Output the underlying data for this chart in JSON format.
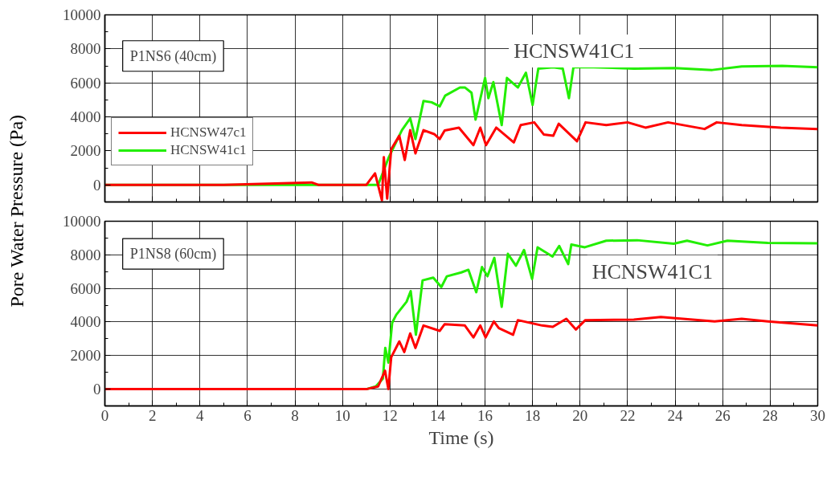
{
  "chart_data": [
    {
      "type": "line",
      "ylabel": "Pore Water Pressure (Pa)",
      "annotations": [
        "P1NS6 (40cm)",
        "HCNSW41C1"
      ],
      "xlim": [
        0,
        30
      ],
      "xticks": [
        0,
        2,
        4,
        6,
        8,
        10,
        12,
        14,
        16,
        18,
        20,
        22,
        24,
        26,
        28,
        30
      ],
      "ylim": [
        -1000,
        10000
      ],
      "yticks": [
        0,
        2000,
        4000,
        6000,
        8000,
        10000
      ],
      "grid": true,
      "legend": "left",
      "tick_labels": "y",
      "line_style": "solid",
      "marker": "none",
      "series": [
        {
          "name": "HCNSW47c1",
          "color": "#ff0000",
          "x": [
            0,
            5,
            8.7,
            9,
            11,
            11.37,
            11.66,
            11.74,
            11.88,
            12.05,
            12.39,
            12.62,
            12.85,
            13.07,
            13.41,
            13.86,
            14.09,
            14.3,
            14.9,
            15.51,
            15.8,
            16.04,
            16.47,
            17.21,
            17.5,
            18.07,
            18.47,
            18.87,
            19.1,
            19.87,
            20.23,
            21.1,
            22.0,
            22.75,
            23.7,
            25.24,
            25.75,
            26.8,
            28.45,
            30
          ],
          "values": [
            0,
            0,
            150,
            0,
            0,
            680,
            -900,
            1630,
            -800,
            2100,
            2890,
            1470,
            3220,
            1860,
            3220,
            2990,
            2700,
            3200,
            3370,
            2340,
            3370,
            2340,
            3370,
            2500,
            3520,
            3680,
            2970,
            2890,
            3600,
            2570,
            3680,
            3520,
            3680,
            3370,
            3680,
            3290,
            3680,
            3520,
            3370,
            3290
          ]
        },
        {
          "name": "HCNSW41c1",
          "color": "#22ee00",
          "x": [
            0,
            5,
            11,
            11.5,
            11.94,
            12.5,
            12.85,
            13.07,
            13.41,
            13.75,
            14.09,
            14.32,
            14.94,
            15.15,
            15.43,
            15.6,
            16.0,
            16.14,
            16.35,
            16.7,
            16.92,
            17.38,
            17.72,
            18.0,
            18.24,
            18.87,
            19.27,
            19.53,
            19.72,
            20.57,
            22.27,
            23.97,
            25.56,
            26.8,
            28.5,
            30
          ],
          "values": [
            0,
            0,
            0,
            0,
            1600,
            3220,
            3920,
            2700,
            4940,
            4860,
            4620,
            5250,
            5730,
            5730,
            5420,
            3840,
            6290,
            5100,
            6050,
            3520,
            6290,
            5730,
            6600,
            4700,
            6840,
            6920,
            6840,
            5100,
            6920,
            6920,
            6840,
            6870,
            6760,
            6970,
            7000,
            6920
          ]
        }
      ]
    },
    {
      "type": "line",
      "xlabel": "Time (s)",
      "annotations": [
        "P1NS8 (60cm)",
        "HCNSW41C1"
      ],
      "xlim": [
        0,
        30
      ],
      "xticks": [
        0,
        2,
        4,
        6,
        8,
        10,
        12,
        14,
        16,
        18,
        20,
        22,
        24,
        26,
        28,
        30
      ],
      "ylim": [
        -1000,
        10000
      ],
      "yticks": [
        0,
        2000,
        4000,
        6000,
        8000,
        10000
      ],
      "grid": true,
      "line_style": "solid",
      "marker": "none",
      "series": [
        {
          "color": "#ff0000",
          "x": [
            0,
            5,
            11,
            11.5,
            11.79,
            11.93,
            12.05,
            12.39,
            12.6,
            12.85,
            13.07,
            13.41,
            14.09,
            14.3,
            15.15,
            15.51,
            15.8,
            16.02,
            16.37,
            16.58,
            17.18,
            17.38,
            18.4,
            18.85,
            19.42,
            19.82,
            20.22,
            22.26,
            23.4,
            25.66,
            26.8,
            27.9,
            30
          ],
          "values": [
            0,
            0,
            0,
            160,
            1100,
            0,
            1900,
            2840,
            2210,
            3320,
            2450,
            3790,
            3470,
            3870,
            3790,
            3080,
            3790,
            3080,
            4030,
            3630,
            3240,
            4110,
            3790,
            3710,
            4190,
            3550,
            4110,
            4140,
            4300,
            4030,
            4190,
            4030,
            3790
          ]
        },
        {
          "color": "#22ee00",
          "x": [
            0,
            5,
            11,
            11.4,
            11.7,
            11.8,
            11.93,
            12.09,
            12.26,
            12.7,
            12.87,
            13.09,
            13.37,
            13.82,
            14.16,
            14.39,
            15.0,
            15.3,
            15.63,
            15.87,
            16.1,
            16.39,
            16.7,
            16.96,
            17.3,
            17.64,
            17.98,
            18.21,
            18.84,
            19.12,
            19.5,
            19.63,
            20.2,
            21.1,
            22.4,
            23.94,
            24.5,
            25.36,
            26.2,
            27.9,
            30
          ],
          "values": [
            0,
            0,
            0,
            160,
            630,
            2450,
            1580,
            3950,
            4420,
            5210,
            5840,
            3240,
            6480,
            6640,
            6080,
            6720,
            6950,
            7110,
            5770,
            7270,
            6720,
            7820,
            4900,
            8060,
            7350,
            8290,
            6560,
            8450,
            7900,
            8530,
            7450,
            8610,
            8450,
            8840,
            8870,
            8660,
            8840,
            8560,
            8840,
            8710,
            8690
          ]
        }
      ]
    }
  ]
}
